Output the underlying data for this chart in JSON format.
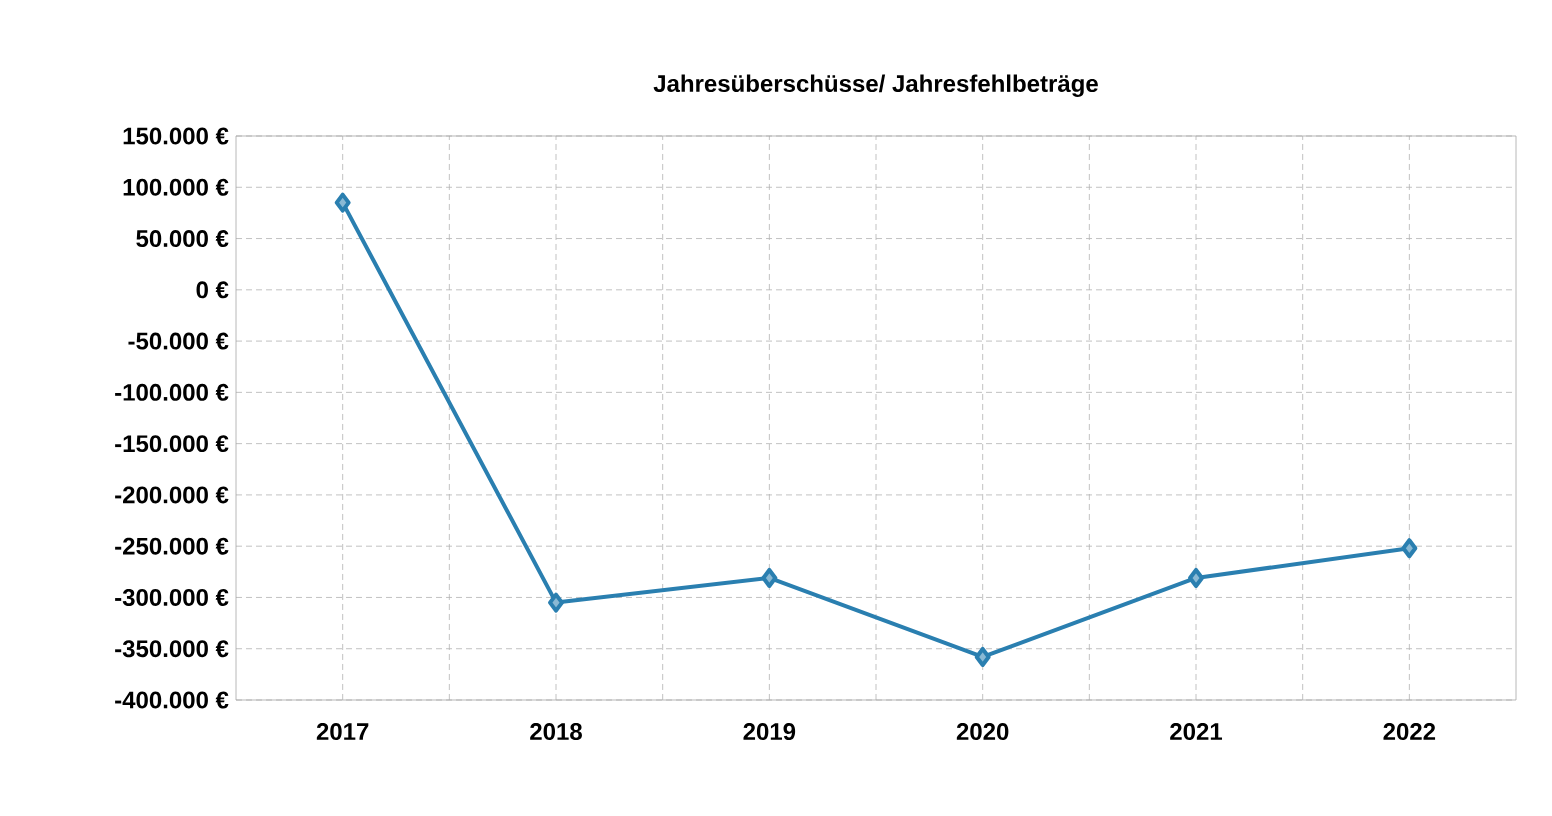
{
  "chart_data": {
    "type": "line",
    "title": "Jahresüberschüsse/ Jahresfehlbeträge",
    "categories": [
      "2017",
      "2018",
      "2019",
      "2020",
      "2021",
      "2022"
    ],
    "series": [
      {
        "color": "#2a7fb0",
        "values": [
          85000,
          -305000,
          -281000,
          -358000,
          -281000,
          -252000
        ]
      }
    ],
    "ylim": [
      -400000,
      150000
    ],
    "yticks": [
      {
        "value": -400000,
        "label": "-400.000 €"
      },
      {
        "value": -350000,
        "label": "-350.000 €"
      },
      {
        "value": -300000,
        "label": "-300.000 €"
      },
      {
        "value": -250000,
        "label": "-250.000 €"
      },
      {
        "value": -200000,
        "label": "-200.000 €"
      },
      {
        "value": -150000,
        "label": "-150.000 €"
      },
      {
        "value": -100000,
        "label": "-100.000 €"
      },
      {
        "value": -50000,
        "label": "-50.000 €"
      },
      {
        "value": 0,
        "label": "0 €"
      },
      {
        "value": 50000,
        "label": "50.000 €"
      },
      {
        "value": 100000,
        "label": "100.000 €"
      },
      {
        "value": 150000,
        "label": "150.000 €"
      }
    ],
    "grid": true,
    "marker": "diamond",
    "line_style": "solid"
  }
}
